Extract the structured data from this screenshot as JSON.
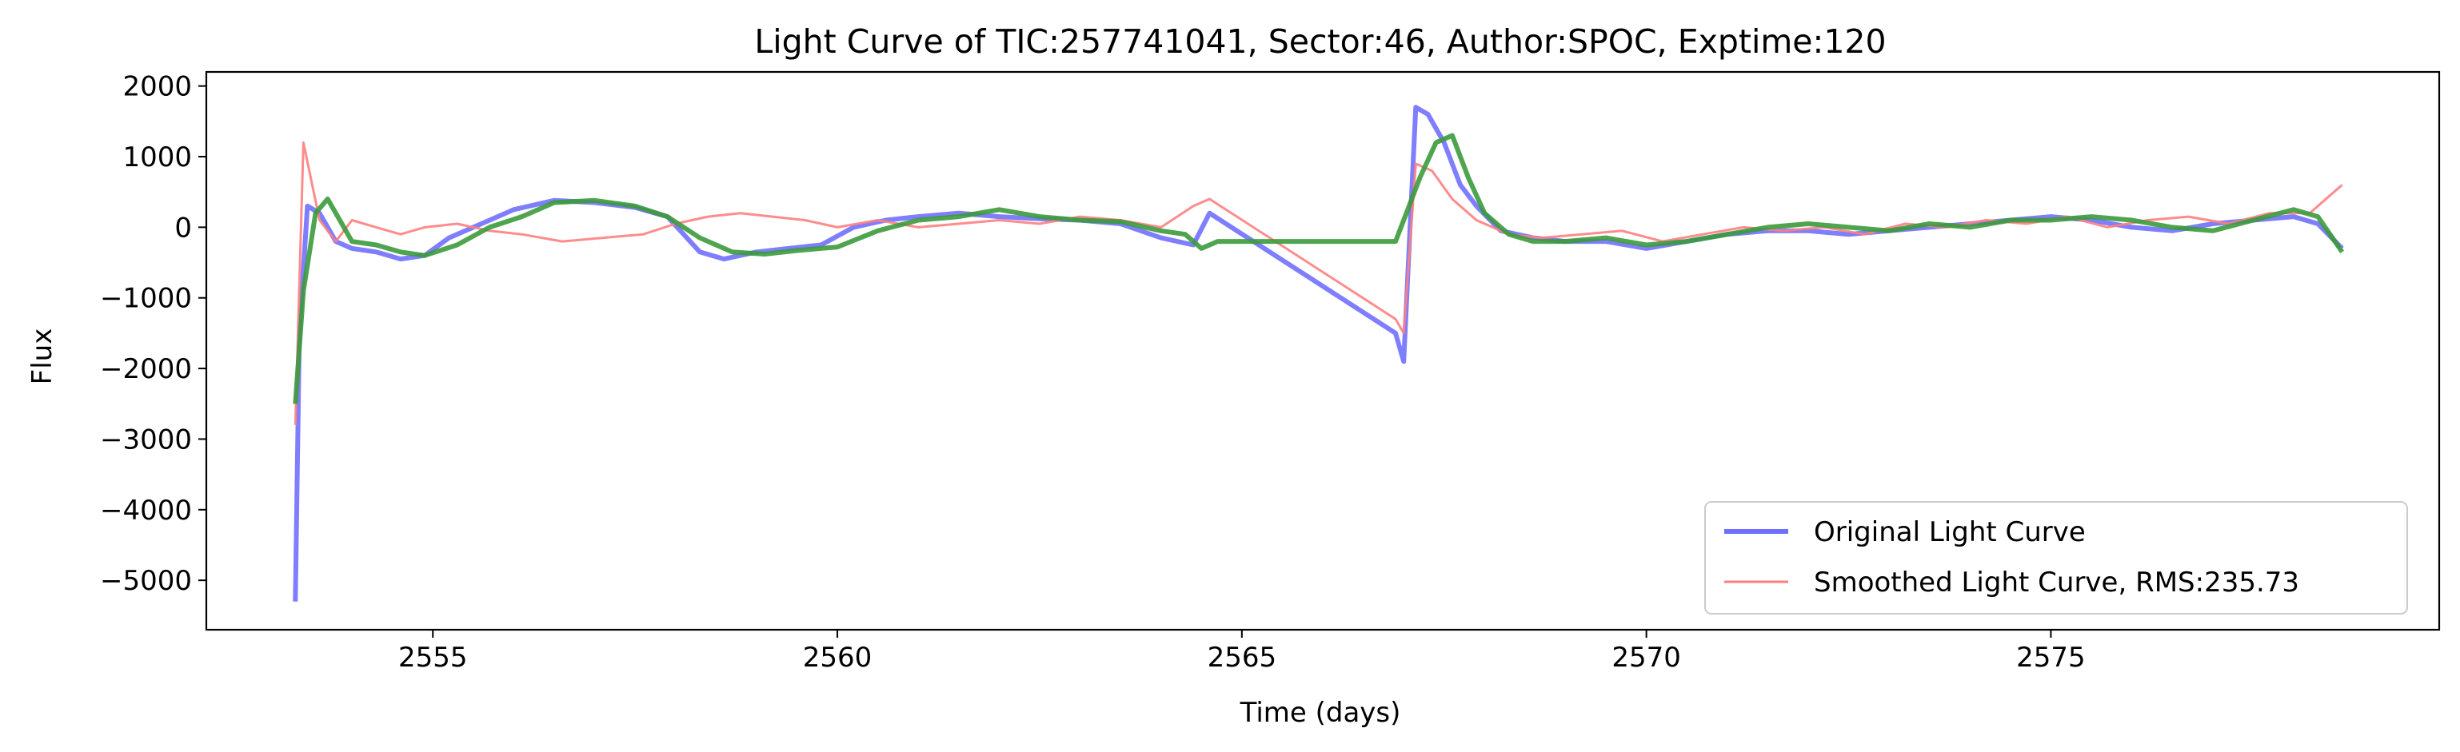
{
  "chart_data": {
    "type": "line",
    "title": "Light Curve of TIC:257741041, Sector:46, Author:SPOC, Exptime:120",
    "xlabel": "Time (days)",
    "ylabel": "Flux",
    "xlim": [
      2552.2,
      2579.8
    ],
    "ylim": [
      -5700,
      2200
    ],
    "xticks": [
      2555,
      2560,
      2565,
      2570,
      2575
    ],
    "yticks": [
      2000,
      1000,
      0,
      -1000,
      -2000,
      -3000,
      -4000,
      -5000
    ],
    "xtick_labels": [
      "2555",
      "2560",
      "2565",
      "2570",
      "2575"
    ],
    "ytick_labels": [
      "2000",
      "1000",
      "0",
      "−1000",
      "−2000",
      "−3000",
      "−4000",
      "−5000"
    ],
    "grid": false,
    "legend_position": "lower right",
    "series": [
      {
        "name": "Original Light Curve",
        "color": "#7070ff",
        "x": [
          2553.3,
          2553.35,
          2553.45,
          2553.6,
          2553.8,
          2554.0,
          2554.3,
          2554.6,
          2554.9,
          2555.2,
          2555.6,
          2556.0,
          2556.5,
          2557.0,
          2557.5,
          2557.9,
          2558.3,
          2558.6,
          2559.0,
          2559.4,
          2559.8,
          2560.2,
          2560.6,
          2561.0,
          2561.5,
          2562.0,
          2562.5,
          2563.0,
          2563.5,
          2564.0,
          2564.4,
          2564.6,
          2566.9,
          2567.0,
          2567.15,
          2567.3,
          2567.5,
          2567.7,
          2567.9,
          2568.2,
          2568.6,
          2569.0,
          2569.5,
          2570.0,
          2570.5,
          2571.0,
          2571.5,
          2572.0,
          2572.5,
          2573.0,
          2573.5,
          2574.0,
          2574.5,
          2575.0,
          2575.5,
          2576.0,
          2576.5,
          2577.0,
          2577.5,
          2578.0,
          2578.3,
          2578.6
        ],
        "y": [
          -5300,
          -1500,
          300,
          200,
          -200,
          -300,
          -350,
          -450,
          -400,
          -150,
          50,
          250,
          380,
          350,
          280,
          150,
          -350,
          -450,
          -350,
          -300,
          -250,
          0,
          100,
          150,
          200,
          150,
          120,
          100,
          50,
          -150,
          -250,
          200,
          -1500,
          -1900,
          1700,
          1600,
          1200,
          600,
          300,
          -50,
          -150,
          -200,
          -200,
          -300,
          -200,
          -100,
          -50,
          -50,
          -100,
          -50,
          0,
          50,
          100,
          150,
          100,
          0,
          -50,
          50,
          100,
          150,
          50,
          -300
        ]
      },
      {
        "name": "Smoothed Light Curve, RMS:235.73",
        "color": "#ff7f7f",
        "x": [
          2553.3,
          2553.4,
          2553.6,
          2553.8,
          2554.0,
          2554.3,
          2554.6,
          2554.9,
          2555.3,
          2555.7,
          2556.1,
          2556.6,
          2557.1,
          2557.6,
          2558.0,
          2558.4,
          2558.8,
          2559.2,
          2559.6,
          2560.0,
          2560.5,
          2561.0,
          2561.5,
          2562.0,
          2562.5,
          2563.0,
          2563.5,
          2564.0,
          2564.4,
          2564.6,
          2566.9,
          2567.0,
          2567.15,
          2567.35,
          2567.6,
          2567.9,
          2568.3,
          2568.7,
          2569.2,
          2569.7,
          2570.2,
          2570.7,
          2571.2,
          2571.7,
          2572.2,
          2572.7,
          2573.2,
          2573.7,
          2574.2,
          2574.7,
          2575.2,
          2575.7,
          2576.2,
          2576.7,
          2577.2,
          2577.7,
          2578.2,
          2578.6
        ],
        "y": [
          -2800,
          1200,
          100,
          -200,
          100,
          0,
          -100,
          0,
          50,
          -50,
          -100,
          -200,
          -150,
          -100,
          50,
          150,
          200,
          150,
          100,
          0,
          100,
          0,
          50,
          100,
          50,
          150,
          100,
          0,
          300,
          400,
          -1300,
          -1500,
          900,
          800,
          400,
          100,
          -100,
          -150,
          -100,
          -50,
          -200,
          -100,
          0,
          -50,
          0,
          -100,
          50,
          0,
          100,
          50,
          150,
          0,
          100,
          150,
          50,
          200,
          200,
          600
        ]
      },
      {
        "name": "",
        "color": "#3c9a3c",
        "x": [
          2553.3,
          2553.4,
          2553.55,
          2553.7,
          2553.85,
          2554.0,
          2554.3,
          2554.6,
          2554.9,
          2555.3,
          2555.7,
          2556.1,
          2556.5,
          2557.0,
          2557.5,
          2557.9,
          2558.3,
          2558.7,
          2559.1,
          2559.5,
          2560.0,
          2560.5,
          2561.0,
          2561.5,
          2562.0,
          2562.5,
          2563.0,
          2563.5,
          2564.0,
          2564.3,
          2564.5,
          2564.7,
          2565.5,
          2566.9,
          2567.0,
          2567.2,
          2567.4,
          2567.6,
          2567.8,
          2568.0,
          2568.3,
          2568.6,
          2569.0,
          2569.5,
          2570.0,
          2570.5,
          2571.0,
          2571.5,
          2572.0,
          2572.5,
          2573.0,
          2573.5,
          2574.0,
          2574.5,
          2575.0,
          2575.5,
          2576.0,
          2576.5,
          2577.0,
          2577.5,
          2578.0,
          2578.3,
          2578.6
        ],
        "y": [
          -2500,
          -900,
          200,
          400,
          100,
          -200,
          -250,
          -350,
          -400,
          -250,
          0,
          150,
          350,
          380,
          300,
          150,
          -150,
          -350,
          -380,
          -330,
          -280,
          -50,
          100,
          150,
          250,
          150,
          100,
          80,
          -50,
          -100,
          -300,
          -200,
          -200,
          -200,
          100,
          700,
          1200,
          1300,
          700,
          200,
          -100,
          -200,
          -200,
          -150,
          -250,
          -200,
          -100,
          0,
          50,
          0,
          -50,
          50,
          0,
          100,
          100,
          150,
          100,
          0,
          -50,
          100,
          250,
          150,
          -350
        ]
      }
    ]
  }
}
